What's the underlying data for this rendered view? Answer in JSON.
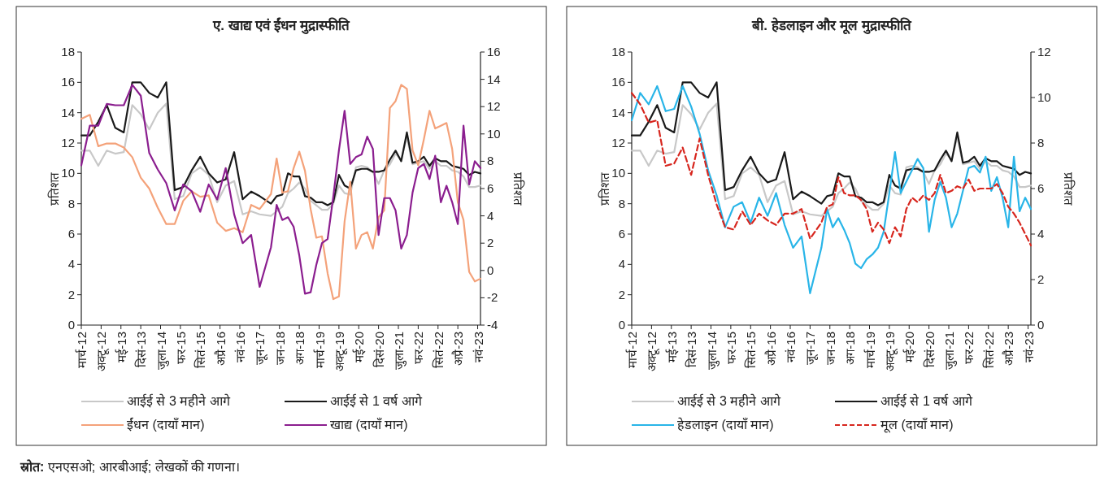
{
  "chart_data": [
    {
      "type": "line",
      "title": "ए. खाद्य एवं ईंधन मुद्रास्फीति",
      "ylabel": "प्रतिशत",
      "y2label": "प्रतिशत",
      "x": [
        "2012-03",
        "2012-06",
        "2012-09",
        "2012-12",
        "2013-03",
        "2013-06",
        "2013-09",
        "2013-12",
        "2014-03",
        "2014-06",
        "2014-09",
        "2014-12",
        "2015-03",
        "2015-06",
        "2015-09",
        "2015-12",
        "2016-03",
        "2016-06",
        "2016-09",
        "2016-12",
        "2017-03",
        "2017-06",
        "2017-10",
        "2017-12",
        "2018-02",
        "2018-04",
        "2018-06",
        "2018-08",
        "2018-10",
        "2018-12",
        "2019-02",
        "2019-04",
        "2019-06",
        "2019-08",
        "2019-10",
        "2019-12",
        "2020-02",
        "2020-04",
        "2020-06",
        "2020-08",
        "2020-10",
        "2020-12",
        "2021-02",
        "2021-04",
        "2021-06",
        "2021-08",
        "2021-10",
        "2021-12",
        "2022-02",
        "2022-04",
        "2022-06",
        "2022-08",
        "2022-10",
        "2022-12",
        "2023-02",
        "2023-04",
        "2023-06",
        "2023-08",
        "2023-10",
        "2023-12"
      ],
      "xlim": [
        "2012-03",
        "2023-12"
      ],
      "xticks": [
        {
          "value": "2012-03",
          "label": "मार्च-12"
        },
        {
          "value": "2012-10",
          "label": "अक्टू-12"
        },
        {
          "value": "2013-05",
          "label": "मई-13"
        },
        {
          "value": "2013-12",
          "label": "दिसं-13"
        },
        {
          "value": "2014-07",
          "label": "जुला-14"
        },
        {
          "value": "2015-02",
          "label": "फर-15"
        },
        {
          "value": "2015-09",
          "label": "सितं-15"
        },
        {
          "value": "2016-04",
          "label": "अप्रै-16"
        },
        {
          "value": "2016-11",
          "label": "नवं-16"
        },
        {
          "value": "2017-06",
          "label": "जून-17"
        },
        {
          "value": "2018-01",
          "label": "जन-18"
        },
        {
          "value": "2018-08",
          "label": "अग-18"
        },
        {
          "value": "2019-03",
          "label": "मार्च-19"
        },
        {
          "value": "2019-10",
          "label": "अक्टू-19"
        },
        {
          "value": "2020-05",
          "label": "मई-20"
        },
        {
          "value": "2020-12",
          "label": "दिसं-20"
        },
        {
          "value": "2021-07",
          "label": "जुला-21"
        },
        {
          "value": "2022-02",
          "label": "फर-22"
        },
        {
          "value": "2022-09",
          "label": "सितं-22"
        },
        {
          "value": "2023-04",
          "label": "अप्रै-23"
        },
        {
          "value": "2023-11",
          "label": "नवं-23"
        }
      ],
      "ylim": [
        0,
        18
      ],
      "yticks": [
        0,
        2,
        4,
        6,
        8,
        10,
        12,
        14,
        16,
        18
      ],
      "y2lim": [
        -4,
        16
      ],
      "y2ticks": [
        -4,
        -2,
        0,
        2,
        4,
        6,
        8,
        10,
        12,
        14,
        16
      ],
      "legend": "bottom",
      "series": [
        {
          "name": "आईई से 3 महीने आगे",
          "color": "#c8c8c8",
          "values": [
            11.5,
            11.5,
            10.5,
            11.5,
            11.3,
            11.4,
            14.5,
            13.9,
            12.9,
            14.0,
            14.6,
            8.3,
            8.5,
            10.0,
            10.4,
            9.9,
            8.1,
            9.2,
            9.5,
            7.3,
            7.5,
            7.3,
            7.2,
            7.5,
            7.8,
            8.7,
            9.0,
            9.4,
            9.0,
            8.2,
            7.9,
            7.6,
            7.6,
            8.0,
            9.2,
            8.7,
            8.6,
            10.4,
            10.5,
            10.4,
            10.1,
            9.3,
            10.2,
            10.6,
            11.3,
            10.9,
            12.4,
            10.6,
            10.7,
            10.8,
            10.3,
            10.8,
            10.5,
            10.5,
            10.2,
            10.1,
            9.8,
            9.1,
            9.1,
            9.2
          ]
        },
        {
          "name": "आईई से 1 वर्ष आगे",
          "color": "#1a1a1a",
          "values": [
            12.5,
            12.5,
            13.4,
            14.5,
            13.0,
            12.7,
            16.0,
            16.0,
            15.3,
            15.0,
            16.0,
            8.9,
            9.1,
            10.2,
            11.1,
            10.0,
            9.4,
            9.6,
            11.4,
            8.3,
            8.8,
            8.5,
            8.0,
            8.5,
            8.6,
            10.0,
            9.8,
            9.8,
            8.5,
            8.4,
            8.1,
            8.1,
            7.9,
            8.1,
            9.9,
            9.2,
            9.0,
            10.2,
            10.3,
            10.3,
            10.1,
            10.1,
            10.2,
            10.9,
            11.5,
            10.8,
            12.7,
            10.7,
            10.8,
            11.1,
            10.5,
            11.0,
            10.8,
            10.8,
            10.5,
            10.4,
            10.3,
            9.9,
            10.1,
            10.0
          ]
        },
        {
          "name": "ईंधन (दायाँ मान)",
          "color": "#f4a27a",
          "axis": "y2",
          "values": [
            11.1,
            11.4,
            9.1,
            9.3,
            9.3,
            9.0,
            8.3,
            6.8,
            6.0,
            4.6,
            3.4,
            3.4,
            5.1,
            5.8,
            5.4,
            5.5,
            3.5,
            2.9,
            3.1,
            2.8,
            4.8,
            4.5,
            5.6,
            8.2,
            5.7,
            5.8,
            7.5,
            8.7,
            7.3,
            4.5,
            2.4,
            2.5,
            -0.2,
            -2.1,
            -1.9,
            3.6,
            6.5,
            1.6,
            2.6,
            2.8,
            1.6,
            3.9,
            4.4,
            11.9,
            12.4,
            13.6,
            13.3,
            8.8,
            7.7,
            9.6,
            11.7,
            10.4,
            10.6,
            10.8,
            8.9,
            5.0,
            3.7,
            -0.1,
            -0.8,
            -0.6
          ]
        },
        {
          "name": "खाद्य (दायाँ मान)",
          "color": "#8b1e8f",
          "axis": "y2",
          "values": [
            7.7,
            10.6,
            10.6,
            12.2,
            12.1,
            12.1,
            13.6,
            12.8,
            8.6,
            7.4,
            6.4,
            4.4,
            6.3,
            5.8,
            4.3,
            6.3,
            5.2,
            7.5,
            4.1,
            2.0,
            2.6,
            -1.2,
            1.7,
            4.8,
            3.7,
            3.9,
            3.2,
            1.1,
            -1.7,
            -1.6,
            0.4,
            2.0,
            2.3,
            5.4,
            8.8,
            11.7,
            7.8,
            8.3,
            8.5,
            9.8,
            8.9,
            2.6,
            5.3,
            5.3,
            4.4,
            1.6,
            2.6,
            5.7,
            7.5,
            7.8,
            6.7,
            8.4,
            5.0,
            6.2,
            5.0,
            3.4,
            10.6,
            6.3,
            8.0,
            7.5
          ]
        }
      ],
      "annotations": [
        "**स्रोत:** एनएसओ; आरबीआई; लेखकों की गणना।"
      ]
    },
    {
      "type": "line",
      "title": "बी. हेडलाइन और मूल मुद्रास्फीति",
      "ylabel": "प्रतिशत",
      "y2label": "प्रतिशत",
      "x": [
        "2012-03",
        "2012-06",
        "2012-09",
        "2012-12",
        "2013-03",
        "2013-06",
        "2013-09",
        "2013-12",
        "2014-03",
        "2014-06",
        "2014-09",
        "2014-12",
        "2015-03",
        "2015-06",
        "2015-09",
        "2015-12",
        "2016-03",
        "2016-06",
        "2016-09",
        "2016-12",
        "2017-03",
        "2017-06",
        "2017-10",
        "2017-12",
        "2018-02",
        "2018-04",
        "2018-06",
        "2018-08",
        "2018-10",
        "2018-12",
        "2019-02",
        "2019-04",
        "2019-06",
        "2019-08",
        "2019-10",
        "2019-12",
        "2020-02",
        "2020-04",
        "2020-06",
        "2020-08",
        "2020-10",
        "2020-12",
        "2021-02",
        "2021-04",
        "2021-06",
        "2021-08",
        "2021-10",
        "2021-12",
        "2022-02",
        "2022-04",
        "2022-06",
        "2022-08",
        "2022-10",
        "2022-12",
        "2023-02",
        "2023-04",
        "2023-06",
        "2023-08",
        "2023-10",
        "2023-12"
      ],
      "xlim": [
        "2012-03",
        "2023-12"
      ],
      "xticks": [
        {
          "value": "2012-03",
          "label": "मार्च-12"
        },
        {
          "value": "2012-10",
          "label": "अक्टू-12"
        },
        {
          "value": "2013-05",
          "label": "मई-13"
        },
        {
          "value": "2013-12",
          "label": "दिसं-13"
        },
        {
          "value": "2014-07",
          "label": "जुला-14"
        },
        {
          "value": "2015-02",
          "label": "फर-15"
        },
        {
          "value": "2015-09",
          "label": "सितं-15"
        },
        {
          "value": "2016-04",
          "label": "अप्रै-16"
        },
        {
          "value": "2016-11",
          "label": "नवं-16"
        },
        {
          "value": "2017-06",
          "label": "जून-17"
        },
        {
          "value": "2018-01",
          "label": "जन-18"
        },
        {
          "value": "2018-08",
          "label": "अग-18"
        },
        {
          "value": "2019-03",
          "label": "मार्च-19"
        },
        {
          "value": "2019-10",
          "label": "अक्टू-19"
        },
        {
          "value": "2020-05",
          "label": "मई-20"
        },
        {
          "value": "2020-12",
          "label": "दिसं-20"
        },
        {
          "value": "2021-07",
          "label": "जुला-21"
        },
        {
          "value": "2022-02",
          "label": "फर-22"
        },
        {
          "value": "2022-09",
          "label": "सितं-22"
        },
        {
          "value": "2023-04",
          "label": "अप्रै-23"
        },
        {
          "value": "2023-11",
          "label": "नवं-23"
        }
      ],
      "ylim": [
        0,
        18
      ],
      "yticks": [
        0,
        2,
        4,
        6,
        8,
        10,
        12,
        14,
        16,
        18
      ],
      "y2lim": [
        0,
        12
      ],
      "y2ticks": [
        0,
        2,
        4,
        6,
        8,
        10,
        12
      ],
      "legend": "bottom",
      "series": [
        {
          "name": "आईई से 3 महीने आगे",
          "color": "#c8c8c8",
          "values": [
            11.5,
            11.5,
            10.5,
            11.5,
            11.3,
            11.4,
            14.5,
            13.9,
            12.9,
            14.0,
            14.6,
            8.3,
            8.5,
            10.0,
            10.4,
            9.9,
            8.1,
            9.2,
            9.5,
            7.3,
            7.5,
            7.3,
            7.2,
            7.5,
            7.8,
            8.7,
            9.0,
            9.4,
            9.0,
            8.2,
            7.9,
            7.6,
            7.6,
            8.0,
            9.2,
            8.7,
            8.6,
            10.4,
            10.5,
            10.4,
            10.1,
            9.3,
            10.2,
            10.6,
            11.3,
            10.9,
            12.4,
            10.6,
            10.7,
            10.8,
            10.3,
            10.8,
            10.5,
            10.5,
            10.2,
            10.1,
            9.8,
            9.1,
            9.1,
            9.2
          ]
        },
        {
          "name": "आईई से 1 वर्ष आगे",
          "color": "#1a1a1a",
          "values": [
            12.5,
            12.5,
            13.4,
            14.5,
            13.0,
            12.7,
            16.0,
            16.0,
            15.3,
            15.0,
            16.0,
            8.9,
            9.1,
            10.2,
            11.1,
            10.0,
            9.4,
            9.6,
            11.4,
            8.3,
            8.8,
            8.5,
            8.0,
            8.5,
            8.6,
            10.0,
            9.8,
            9.8,
            8.5,
            8.4,
            8.1,
            8.1,
            7.9,
            8.1,
            9.9,
            9.2,
            9.0,
            10.2,
            10.3,
            10.3,
            10.1,
            10.1,
            10.2,
            10.9,
            11.5,
            10.8,
            12.7,
            10.7,
            10.8,
            11.1,
            10.5,
            11.0,
            10.8,
            10.8,
            10.5,
            10.4,
            10.3,
            9.9,
            10.1,
            10.0
          ]
        },
        {
          "name": "हेडलाइन (दायाँ मान)",
          "color": "#29b5e8",
          "axis": "y2",
          "values": [
            9.0,
            10.2,
            9.7,
            10.5,
            9.4,
            9.5,
            10.5,
            9.6,
            8.4,
            6.8,
            5.7,
            4.3,
            5.2,
            5.4,
            4.5,
            5.6,
            4.8,
            5.8,
            4.4,
            3.4,
            3.9,
            1.4,
            3.4,
            5.1,
            4.3,
            4.7,
            4.2,
            3.6,
            2.7,
            2.5,
            2.9,
            3.1,
            3.4,
            4.1,
            5.8,
            7.6,
            5.8,
            6.3,
            6.8,
            7.3,
            6.9,
            4.1,
            5.5,
            6.3,
            5.6,
            4.3,
            4.9,
            5.9,
            6.9,
            7.0,
            6.7,
            7.4,
            5.9,
            6.5,
            5.6,
            4.3,
            7.4,
            5.0,
            5.6,
            5.1
          ]
        },
        {
          "name": "मूल (दायाँ मान)",
          "color": "#d7261e",
          "axis": "y2",
          "line_style": "dashed",
          "values": [
            10.2,
            9.7,
            8.9,
            9.0,
            7.0,
            7.1,
            7.8,
            6.6,
            8.2,
            6.6,
            5.3,
            4.3,
            4.2,
            5.0,
            4.4,
            4.9,
            4.6,
            4.4,
            4.9,
            4.9,
            5.1,
            3.8,
            4.5,
            5.2,
            5.3,
            6.5,
            5.8,
            5.7,
            5.7,
            5.5,
            5.1,
            4.1,
            4.5,
            4.2,
            3.6,
            4.3,
            3.9,
            5.1,
            5.6,
            5.4,
            5.7,
            5.5,
            5.8,
            6.6,
            5.8,
            5.9,
            6.1,
            6.0,
            6.4,
            5.9,
            6.0,
            6.0,
            6.0,
            6.2,
            5.8,
            5.2,
            4.9,
            4.5,
            4.0,
            3.5
          ]
        }
      ]
    }
  ]
}
